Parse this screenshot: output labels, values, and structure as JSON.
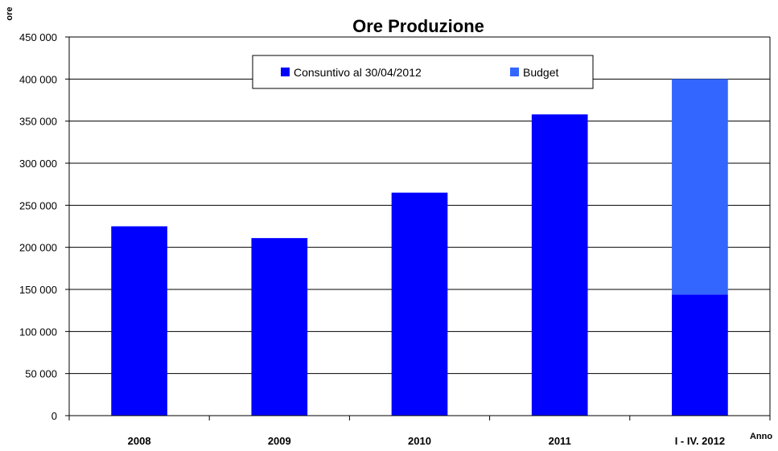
{
  "chart_data": {
    "type": "bar",
    "stacked": true,
    "title": "Ore Produzione",
    "xlabel": "Anno",
    "ylabel": "ore",
    "categories": [
      "2008",
      "2009",
      "2010",
      "2011",
      "I - IV. 2012"
    ],
    "series": [
      {
        "name": "Consuntivo al 30/04/2012",
        "color": "#0000ff",
        "values": [
          225000,
          211000,
          265000,
          358000,
          144000
        ]
      },
      {
        "name": "Budget",
        "color": "#3366ff",
        "values": [
          0,
          0,
          0,
          0,
          256000
        ]
      }
    ],
    "ylim": [
      0,
      450000
    ],
    "ytick_step": 50000,
    "ytick_labels": [
      "0",
      "50 000",
      "100 000",
      "150 000",
      "200 000",
      "250 000",
      "300 000",
      "350 000",
      "400 000",
      "450 000"
    ],
    "grid": true,
    "legend_position": "top-center"
  }
}
